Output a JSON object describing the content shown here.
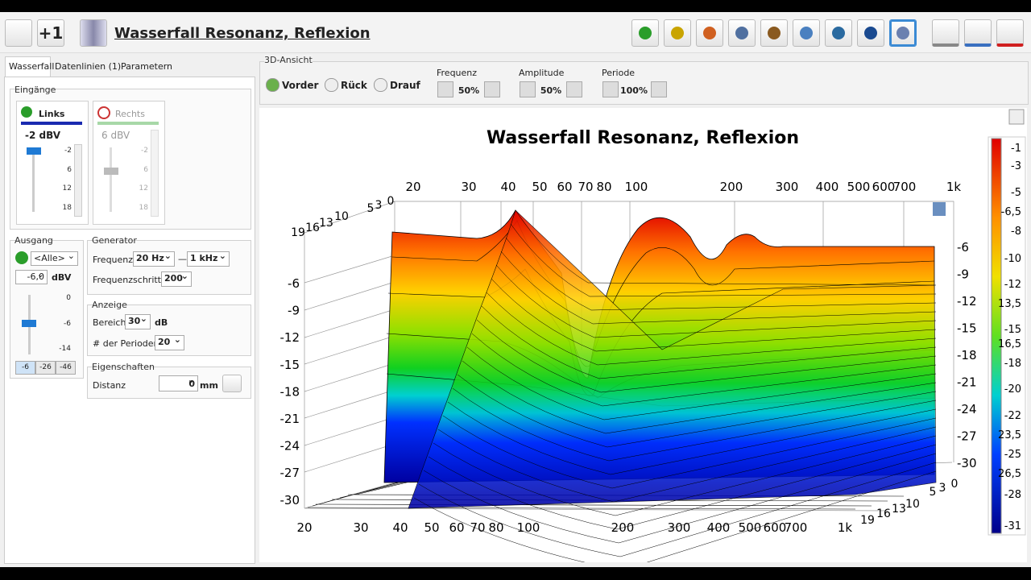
{
  "header": {
    "title": "Wasserfall Resonanz, Reflexion",
    "plus_one": "+1"
  },
  "tabs": [
    "Wasserfall",
    "Datenlinien (1)",
    "Parametern"
  ],
  "inputs": {
    "legend": "Eingänge",
    "left": {
      "name": "Links",
      "value": "-2 dBV",
      "ticks": [
        "-2",
        "6",
        "12",
        "18"
      ]
    },
    "right": {
      "name": "Rechts",
      "value": "6 dBV",
      "ticks": [
        "-2",
        "6",
        "12",
        "18"
      ]
    }
  },
  "output": {
    "legend": "Ausgang",
    "select": "<Alle>",
    "value": "-6,0",
    "unit": "dBV",
    "ticks": [
      "0",
      "-6",
      "-14"
    ],
    "buttons": [
      "-6",
      "-26",
      "-46"
    ]
  },
  "generator": {
    "legend": "Generator",
    "freq_label": "Frequenz",
    "from": "20 Hz",
    "dash": "—",
    "to": "1 kHz",
    "steps_label": "Frequenzschritte",
    "steps": "200"
  },
  "display": {
    "legend": "Anzeige",
    "range_label": "Bereich",
    "range": "30",
    "range_unit": "dB",
    "periods_label": "# der Perioden",
    "periods": "20"
  },
  "properties": {
    "legend": "Eigenschaften",
    "distance_label": "Distanz",
    "distance": "0",
    "unit": "mm"
  },
  "view": {
    "legend": "3D-Ansicht",
    "buttons": [
      "Vorder",
      "Rück",
      "Drauf"
    ],
    "freq": {
      "label": "Frequenz",
      "value": "50%"
    },
    "amp": {
      "label": "Amplitude",
      "value": "50%"
    },
    "period": {
      "label": "Periode",
      "value": "100%"
    }
  },
  "plot": {
    "title": "Wasserfall Resonanz, Reflexion",
    "top_x": [
      "20",
      "30",
      "40",
      "50",
      "60",
      "70",
      "80",
      "100",
      "200",
      "300",
      "400",
      "500",
      "600",
      "700",
      "1k"
    ],
    "bottom_x": [
      "20",
      "30",
      "40",
      "50",
      "60",
      "70",
      "80",
      "100",
      "200",
      "300",
      "400",
      "500",
      "600",
      "700",
      "1k"
    ],
    "left_y": [
      "-6",
      "-9",
      "-12",
      "-15",
      "-18",
      "-21",
      "-24",
      "-27",
      "-30"
    ],
    "right_y": [
      "-6",
      "-9",
      "-12",
      "-15",
      "-18",
      "-21",
      "-24",
      "-27",
      "-30"
    ],
    "depth_back": [
      "19",
      "16",
      "13",
      "10",
      "5",
      "3",
      "0"
    ],
    "depth_front": [
      "19",
      "16",
      "13",
      "10",
      "5",
      "3",
      "0"
    ],
    "colorbar": [
      "-1",
      "-3",
      "-5",
      "-6,5",
      "-8",
      "-10",
      "-12",
      "13,5",
      "-15",
      "16,5",
      "-18",
      "-20",
      "-22",
      "23,5",
      "-25",
      "26,5",
      "-28",
      "-31"
    ]
  }
}
